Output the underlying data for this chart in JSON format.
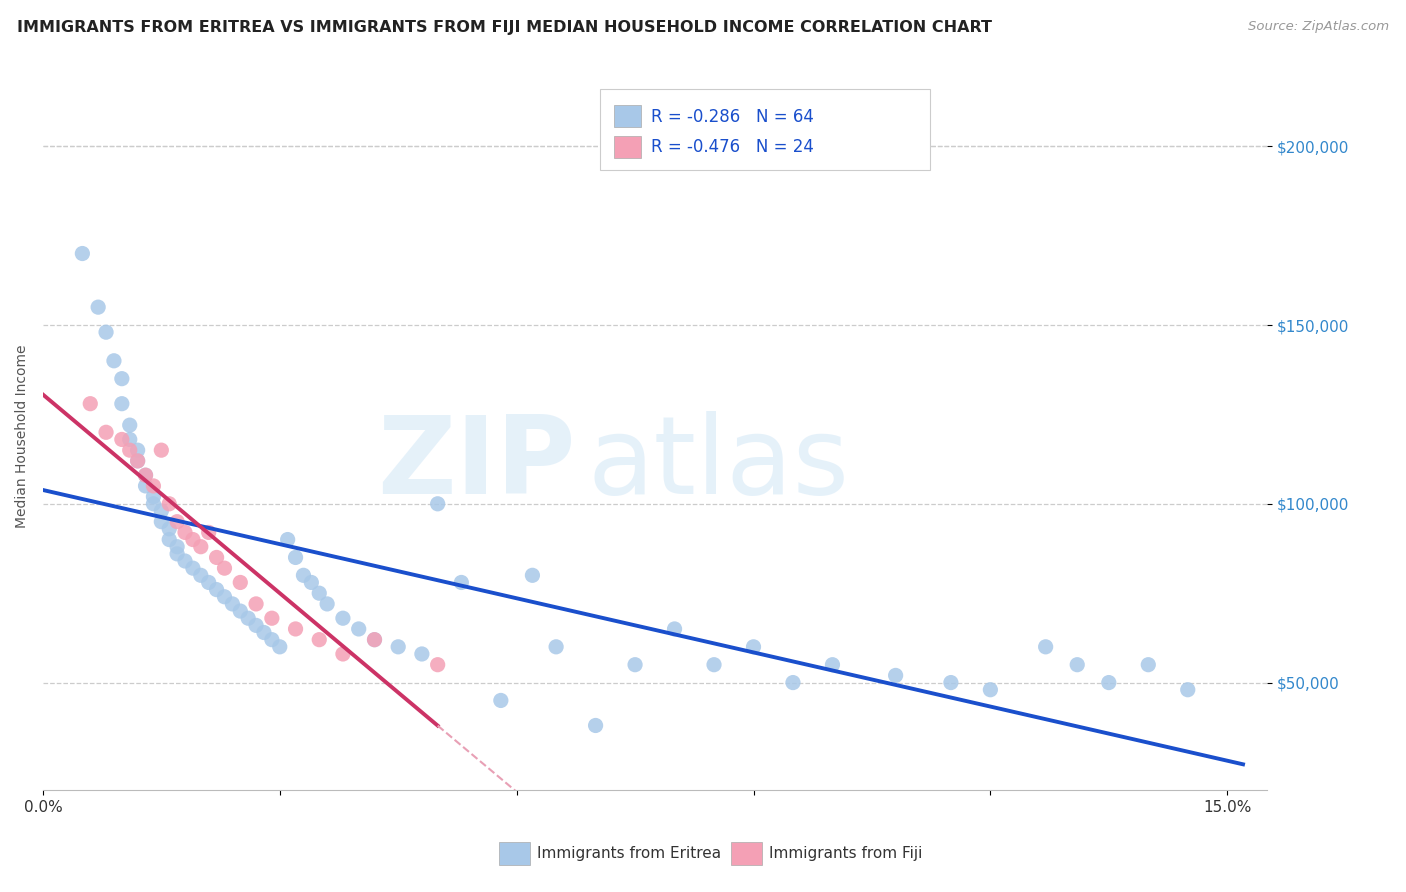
{
  "title": "IMMIGRANTS FROM ERITREA VS IMMIGRANTS FROM FIJI MEDIAN HOUSEHOLD INCOME CORRELATION CHART",
  "source": "Source: ZipAtlas.com",
  "ylabel": "Median Household Income",
  "xlim": [
    0.0,
    0.155
  ],
  "ylim": [
    20000,
    218000
  ],
  "yticks": [
    50000,
    100000,
    150000,
    200000
  ],
  "ytick_labels": [
    "$50,000",
    "$100,000",
    "$150,000",
    "$200,000"
  ],
  "xticks": [
    0.0,
    0.03,
    0.06,
    0.09,
    0.12,
    0.15
  ],
  "xtick_labels": [
    "0.0%",
    "",
    "",
    "",
    "",
    "15.0%"
  ],
  "legend_r1": "-0.286",
  "legend_n1": "64",
  "legend_r2": "-0.476",
  "legend_n2": "N = 24",
  "color_eritrea": "#a8c8e8",
  "color_fiji": "#f4a0b5",
  "color_trendline_eritrea": "#1a4fcc",
  "color_trendline_fiji": "#cc3366",
  "color_trendline_fiji_dashed": "#e8a0b5",
  "color_grid": "#cccccc",
  "color_ytick": "#3388cc",
  "color_xtick": "#333333",
  "background_color": "#ffffff",
  "title_color": "#222222",
  "title_fontsize": 11.5,
  "axis_label_fontsize": 10,
  "tick_fontsize": 11,
  "legend_fontsize": 12,
  "scatter_eritrea_x": [
    0.005,
    0.007,
    0.008,
    0.009,
    0.01,
    0.01,
    0.011,
    0.011,
    0.012,
    0.012,
    0.013,
    0.013,
    0.014,
    0.014,
    0.015,
    0.015,
    0.016,
    0.016,
    0.017,
    0.017,
    0.018,
    0.019,
    0.02,
    0.021,
    0.022,
    0.023,
    0.024,
    0.025,
    0.026,
    0.027,
    0.028,
    0.029,
    0.03,
    0.031,
    0.032,
    0.033,
    0.034,
    0.035,
    0.036,
    0.038,
    0.04,
    0.042,
    0.045,
    0.048,
    0.05,
    0.053,
    0.058,
    0.062,
    0.065,
    0.07,
    0.075,
    0.08,
    0.085,
    0.09,
    0.095,
    0.1,
    0.108,
    0.115,
    0.12,
    0.127,
    0.131,
    0.135,
    0.14,
    0.145
  ],
  "scatter_eritrea_y": [
    170000,
    155000,
    148000,
    140000,
    135000,
    128000,
    122000,
    118000,
    115000,
    112000,
    108000,
    105000,
    102000,
    100000,
    98000,
    95000,
    93000,
    90000,
    88000,
    86000,
    84000,
    82000,
    80000,
    78000,
    76000,
    74000,
    72000,
    70000,
    68000,
    66000,
    64000,
    62000,
    60000,
    90000,
    85000,
    80000,
    78000,
    75000,
    72000,
    68000,
    65000,
    62000,
    60000,
    58000,
    100000,
    78000,
    45000,
    80000,
    60000,
    38000,
    55000,
    65000,
    55000,
    60000,
    50000,
    55000,
    52000,
    50000,
    48000,
    60000,
    55000,
    50000,
    55000,
    48000
  ],
  "scatter_fiji_x": [
    0.006,
    0.008,
    0.01,
    0.011,
    0.012,
    0.013,
    0.014,
    0.015,
    0.016,
    0.017,
    0.018,
    0.019,
    0.02,
    0.021,
    0.022,
    0.023,
    0.025,
    0.027,
    0.029,
    0.032,
    0.035,
    0.038,
    0.042,
    0.05
  ],
  "scatter_fiji_y": [
    128000,
    120000,
    118000,
    115000,
    112000,
    108000,
    105000,
    115000,
    100000,
    95000,
    92000,
    90000,
    88000,
    92000,
    85000,
    82000,
    78000,
    72000,
    68000,
    65000,
    62000,
    58000,
    62000,
    55000
  ]
}
